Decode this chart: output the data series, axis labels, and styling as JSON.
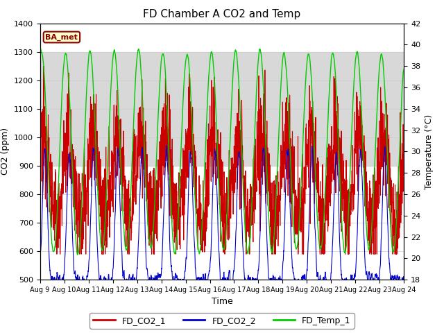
{
  "title": "FD Chamber A CO2 and Temp",
  "xlabel": "Time",
  "ylabel_left": "CO2 (ppm)",
  "ylabel_right": "Temperature (°C)",
  "ylim_left": [
    500,
    1400
  ],
  "ylim_right": [
    18,
    42
  ],
  "xlim": [
    0,
    15
  ],
  "xtick_labels": [
    "Aug 9",
    "Aug 10",
    "Aug 11",
    "Aug 12",
    "Aug 13",
    "Aug 14",
    "Aug 15",
    "Aug 16",
    "Aug 17",
    "Aug 18",
    "Aug 19",
    "Aug 20",
    "Aug 21",
    "Aug 22",
    "Aug 23",
    "Aug 24"
  ],
  "annotation_text": "BA_met",
  "annotation_color": "#880000",
  "annotation_bg": "#ffffcc",
  "bg_band_ymin": 900,
  "bg_band_ymax": 1300,
  "bg_band_color": "#d8d8d8",
  "line_colors": [
    "#cc0000",
    "#0000cc",
    "#00cc00"
  ],
  "line_labels": [
    "FD_CO2_1",
    "FD_CO2_2",
    "FD_Temp_1"
  ],
  "seed": 12345
}
